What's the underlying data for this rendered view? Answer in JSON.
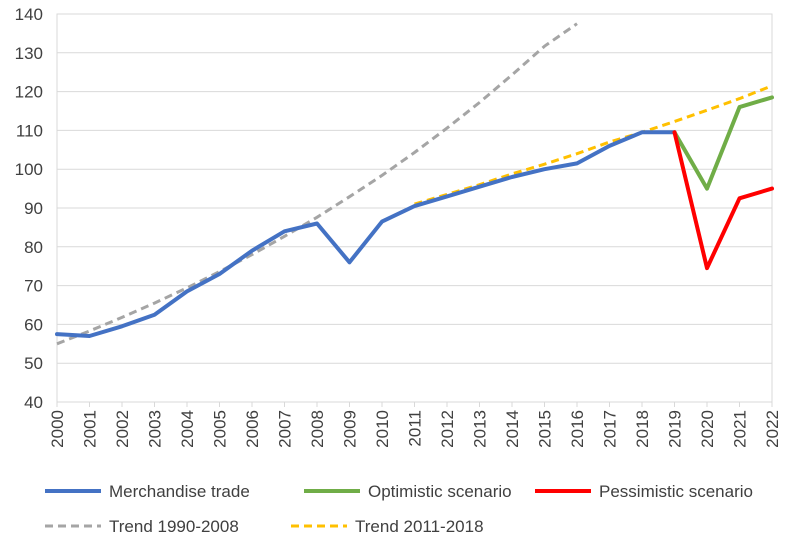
{
  "chart_data": {
    "type": "line",
    "title": "",
    "xlabel": "",
    "ylabel": "",
    "ylim": [
      40,
      140
    ],
    "y_ticks": [
      40,
      50,
      60,
      70,
      80,
      90,
      100,
      110,
      120,
      130,
      140
    ],
    "x_categories": [
      "2000",
      "2001",
      "2002",
      "2003",
      "2004",
      "2005",
      "2006",
      "2007",
      "2008",
      "2009",
      "2010",
      "2011",
      "2012",
      "2013",
      "2014",
      "2015",
      "2016",
      "2017",
      "2018",
      "2019",
      "2020",
      "2021",
      "2022"
    ],
    "grid": "horizontal",
    "legend_position": "bottom",
    "series": [
      {
        "name": "Merchandise trade",
        "color": "#4472C4",
        "style": "solid",
        "points": [
          [
            "2000",
            57.5
          ],
          [
            "2001",
            57
          ],
          [
            "2002",
            59.5
          ],
          [
            "2003",
            62.5
          ],
          [
            "2004",
            68.5
          ],
          [
            "2005",
            73
          ],
          [
            "2006",
            79
          ],
          [
            "2007",
            84
          ],
          [
            "2008",
            86
          ],
          [
            "2009",
            76
          ],
          [
            "2010",
            86.5
          ],
          [
            "2011",
            90.5
          ],
          [
            "2012",
            93
          ],
          [
            "2013",
            95.5
          ],
          [
            "2014",
            98
          ],
          [
            "2015",
            100
          ],
          [
            "2016",
            101.5
          ],
          [
            "2017",
            106
          ],
          [
            "2018",
            109.5
          ],
          [
            "2019",
            109.5
          ]
        ]
      },
      {
        "name": "Optimistic scenario",
        "color": "#70AD47",
        "style": "solid",
        "points": [
          [
            "2019",
            109.5
          ],
          [
            "2020",
            95
          ],
          [
            "2021",
            116
          ],
          [
            "2022",
            118.5
          ]
        ]
      },
      {
        "name": "Pessimistic scenario",
        "color": "#FF0000",
        "style": "solid",
        "points": [
          [
            "2019",
            109.5
          ],
          [
            "2020",
            74.5
          ],
          [
            "2021",
            92.5
          ],
          [
            "2022",
            95
          ]
        ]
      },
      {
        "name": "Trend 1990-2008",
        "color": "#A5A5A5",
        "style": "dashed",
        "points": [
          [
            "2000",
            55
          ],
          [
            "2001",
            58.3
          ],
          [
            "2002",
            61.8
          ],
          [
            "2003",
            65.5
          ],
          [
            "2004",
            69.4
          ],
          [
            "2005",
            73.6
          ],
          [
            "2006",
            78
          ],
          [
            "2007",
            82.7
          ],
          [
            "2008",
            87.6
          ],
          [
            "2009",
            92.9
          ],
          [
            "2010",
            98.4
          ],
          [
            "2011",
            104.3
          ],
          [
            "2012",
            110.6
          ],
          [
            "2013",
            117.2
          ],
          [
            "2014",
            124.3
          ],
          [
            "2015",
            131.7
          ],
          [
            "2016",
            137.5
          ]
        ]
      },
      {
        "name": "Trend 2011-2018",
        "color": "#FFC000",
        "style": "dashed",
        "points": [
          [
            "2011",
            91
          ],
          [
            "2012",
            93.5
          ],
          [
            "2013",
            96
          ],
          [
            "2014",
            98.8
          ],
          [
            "2015",
            101.3
          ],
          [
            "2016",
            104
          ],
          [
            "2017",
            107
          ],
          [
            "2018",
            109.5
          ],
          [
            "2019",
            112.3
          ],
          [
            "2020",
            115.2
          ],
          [
            "2021",
            118.2
          ],
          [
            "2022",
            121.5
          ]
        ]
      }
    ],
    "legend_rows": [
      [
        "Merchandise trade",
        "Optimistic scenario",
        "Pessimistic scenario"
      ],
      [
        "Trend 1990-2008",
        "Trend 2011-2018"
      ]
    ]
  }
}
